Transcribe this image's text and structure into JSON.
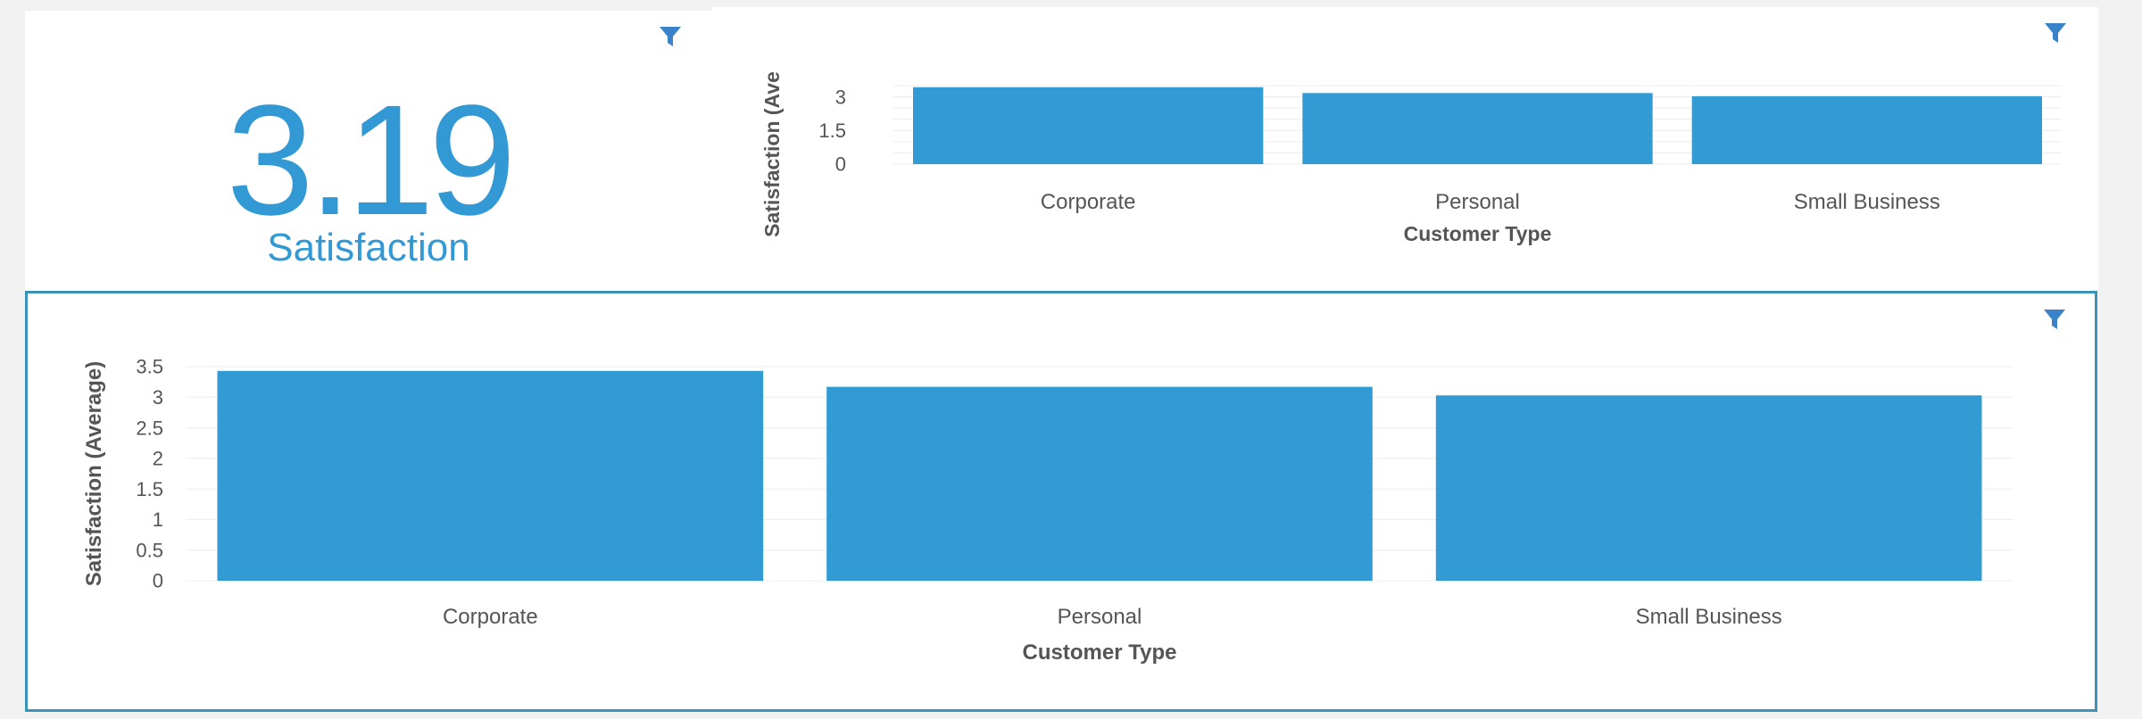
{
  "colors": {
    "accent": "#3399d4",
    "bar": "#339bd3",
    "frame": "#3a93b8"
  },
  "kpi": {
    "value": "3.19",
    "label": "Satisfaction",
    "icon": "filter-icon"
  },
  "small_chart": {
    "icon": "filter-icon"
  },
  "large_chart": {
    "icon": "filter-icon"
  },
  "chart_data": [
    {
      "type": "bar",
      "categories": [
        "Corporate",
        "Personal",
        "Small Business"
      ],
      "values": [
        3.43,
        3.17,
        3.03
      ],
      "xlabel": "Customer Type",
      "ylabel": "Satisfaction (Ave",
      "yticks": [
        "0",
        "1.5",
        "3"
      ],
      "ylim": [
        0,
        3.5
      ],
      "grid": true
    },
    {
      "type": "bar",
      "categories": [
        "Corporate",
        "Personal",
        "Small Business"
      ],
      "values": [
        3.43,
        3.17,
        3.03
      ],
      "xlabel": "Customer Type",
      "ylabel": "Satisfaction (Average)",
      "yticks": [
        "0",
        "0.5",
        "1",
        "1.5",
        "2",
        "2.5",
        "3",
        "3.5"
      ],
      "ylim": [
        0,
        3.5
      ],
      "grid": true
    }
  ]
}
